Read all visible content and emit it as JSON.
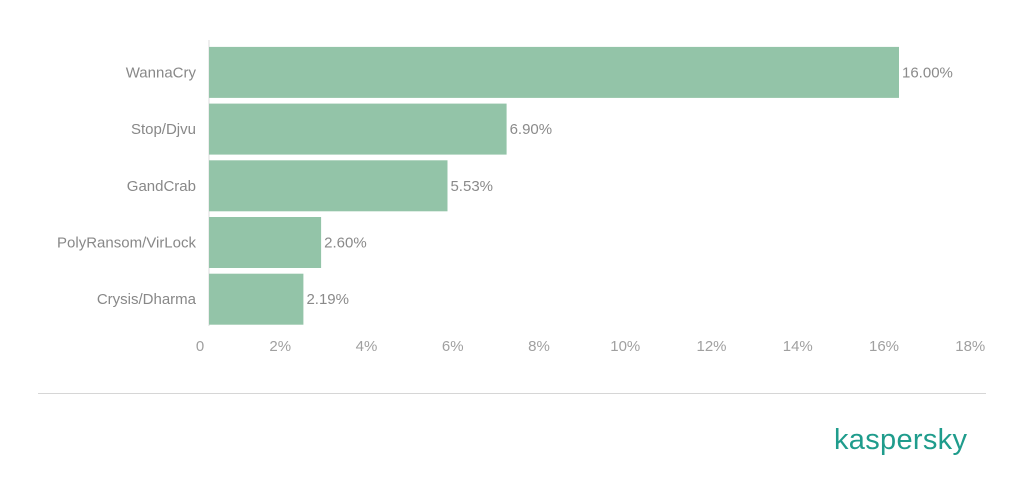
{
  "chart_data": {
    "type": "bar",
    "orientation": "horizontal",
    "categories": [
      "WannaCry",
      "Stop/Djvu",
      "GandCrab",
      "PolyRansom/VirLock",
      "Crysis/Dharma"
    ],
    "values": [
      16.0,
      6.9,
      5.53,
      2.6,
      2.19
    ],
    "value_labels": [
      "16.00%",
      "6.90%",
      "5.53%",
      "2.60%",
      "2.19%"
    ],
    "x_ticks": [
      0,
      2,
      4,
      6,
      8,
      10,
      12,
      14,
      16,
      18
    ],
    "x_tick_labels": [
      "0",
      "2%",
      "4%",
      "6%",
      "8%",
      "10%",
      "12%",
      "14%",
      "16%",
      "18%"
    ],
    "xlim": [
      0,
      18
    ],
    "title": "",
    "xlabel": "",
    "ylabel": "",
    "grid": false,
    "legend": "none",
    "bar_color": "#93c4a8"
  },
  "brand": {
    "logo_text": "kaspersky",
    "color": "#1f9c8c"
  }
}
